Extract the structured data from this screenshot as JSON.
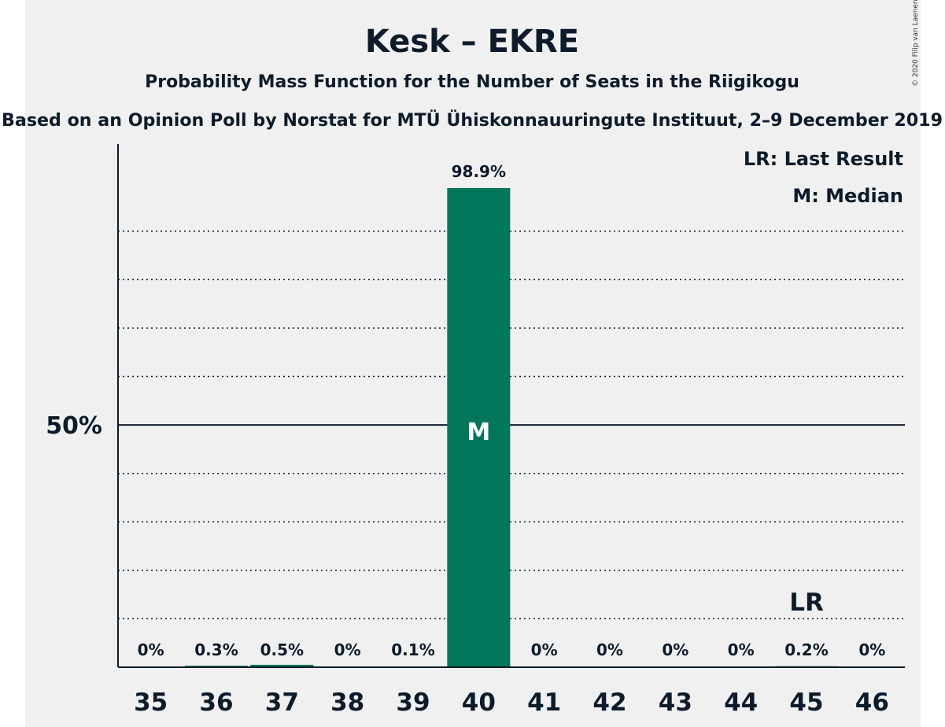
{
  "chart_data": {
    "type": "bar",
    "title": "Kesk – EKRE",
    "subtitle": "Probability Mass Function for the Number of Seats in the Riigikogu",
    "source": "Based on an Opinion Poll by Norstat for MTÜ Ühiskonnauuringute Instituut, 2–9 December 2019",
    "copyright": "© 2020 Filip van Laenen",
    "categories": [
      "35",
      "36",
      "37",
      "38",
      "39",
      "40",
      "41",
      "42",
      "43",
      "44",
      "45",
      "46"
    ],
    "values": [
      0,
      0.3,
      0.5,
      0,
      0.1,
      98.9,
      0,
      0,
      0,
      0,
      0.2,
      0
    ],
    "value_labels": [
      "0%",
      "0.3%",
      "0.5%",
      "0%",
      "0.1%",
      "98.9%",
      "0%",
      "0%",
      "0%",
      "0%",
      "0.2%",
      "0%"
    ],
    "ylim": [
      0,
      108
    ],
    "yticks": [
      {
        "value": 50,
        "label": "50%"
      }
    ],
    "gridlines": [
      10,
      20,
      30,
      40,
      60,
      70,
      80,
      90
    ],
    "median": {
      "category": "40",
      "label": "M"
    },
    "last_result": {
      "category": "45",
      "label": "LR"
    },
    "legend": {
      "position": "top-right",
      "items": [
        "LR: Last Result",
        "M: Median"
      ]
    },
    "colors": {
      "bar": "#00775a",
      "axis": "#0d1b2a",
      "background": "#f0f0f0"
    }
  }
}
